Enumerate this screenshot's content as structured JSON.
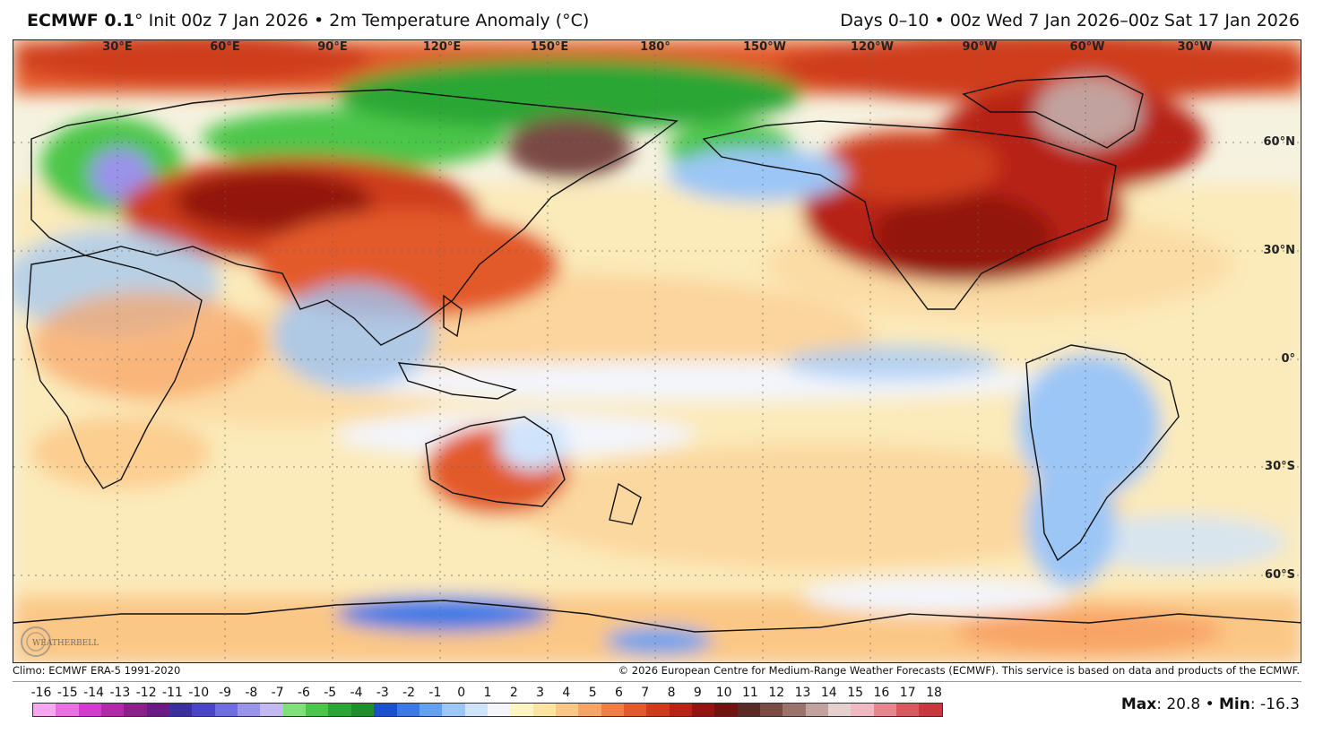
{
  "header": {
    "model": "ECMWF 0.1",
    "deg": "°",
    "init_text": " Init 00z 7 Jan 2026 • 2m Temperature Anomaly (°C)",
    "range_text": "Days 0–10 • 00z Wed 7 Jan 2026–00z Sat 17 Jan 2026"
  },
  "map": {
    "lon_labels": [
      "30°E",
      "60°E",
      "90°E",
      "120°E",
      "150°E",
      "180°",
      "150°W",
      "120°W",
      "90°W",
      "60°W",
      "30°W"
    ],
    "lat_labels": [
      "60°N",
      "30°N",
      "0°",
      "30°S",
      "60°S"
    ]
  },
  "logo": {
    "text": "WEATHERBELL"
  },
  "footer": {
    "climo": "Climo: ECMWF ERA-5 1991-2020",
    "copyright": "© 2026 European Centre for Medium-Range Weather Forecasts (ECMWF). This service is based on data and products of the ECMWF."
  },
  "colorbar": {
    "ticks": [
      "-16",
      "-15",
      "-14",
      "-13",
      "-12",
      "-11",
      "-10",
      "-9",
      "-8",
      "-7",
      "-6",
      "-5",
      "-4",
      "-3",
      "-2",
      "-1",
      "0",
      "1",
      "2",
      "3",
      "4",
      "5",
      "6",
      "7",
      "8",
      "9",
      "10",
      "11",
      "12",
      "13",
      "14",
      "15",
      "16",
      "17",
      "18"
    ],
    "colors": [
      "#f7a8f0",
      "#ea6fe3",
      "#d43ccf",
      "#b22aa8",
      "#8c1f8a",
      "#6b1a86",
      "#3c2fa0",
      "#4a45c8",
      "#6e6ee0",
      "#9a93ea",
      "#c3b8f0",
      "#7fe07a",
      "#4cc64a",
      "#2aa636",
      "#1f8f2e",
      "#1a4fd0",
      "#3a79e6",
      "#62a0f0",
      "#9cc6f6",
      "#cfe3fb",
      "#f3f5fb",
      "#fdf4c4",
      "#fde4a0",
      "#fbc786",
      "#f8a466",
      "#f07e45",
      "#e35a2c",
      "#cf3c1c",
      "#b72415",
      "#931410",
      "#70120e",
      "#5a2a26",
      "#7a4a45",
      "#9c726c",
      "#c2a29e",
      "#e4d0ce",
      "#f0b8c0",
      "#e7868e",
      "#d85a5e",
      "#c8383c"
    ]
  },
  "stats": {
    "max_label": "Max",
    "max_value": ": 20.8 • ",
    "min_label": "Min",
    "min_value": ": -16.3"
  }
}
